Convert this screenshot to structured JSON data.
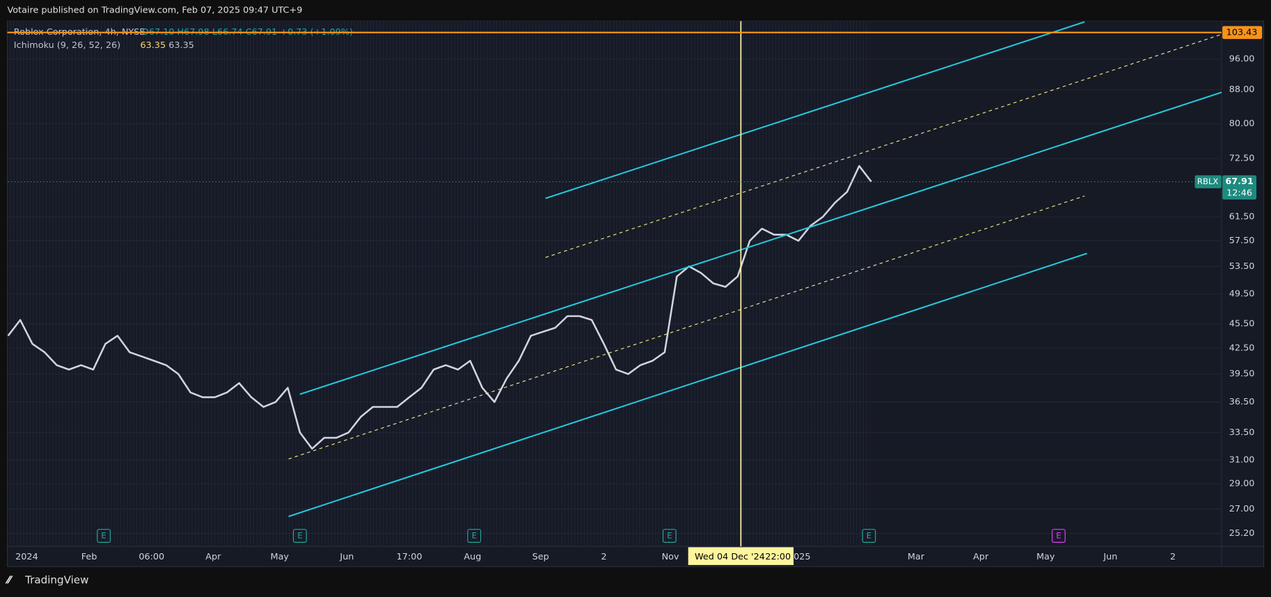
{
  "header": {
    "published": "Votaire published on TradingView.com, Feb 07, 2025 09:47 UTC+9",
    "footer": "TradingView"
  },
  "chart_data": {
    "type": "line",
    "legend": {
      "symbol": "Roblox Corporation, 4h, NYSE",
      "ohlc": "O67.10 H67.98 L66.74 C67.91 +0.73 (+1.09%)",
      "indicator": "Ichimoku (9, 26, 52, 26)",
      "indicator_values": [
        63.35,
        63.35
      ]
    },
    "series": [
      {
        "name": "RBLX",
        "color": "#d1d4dc",
        "values": [
          44,
          46,
          43,
          42,
          40.5,
          40,
          40.5,
          40,
          43,
          44,
          42,
          41.5,
          41,
          40.5,
          39.5,
          37.5,
          37,
          37,
          37.5,
          38.5,
          37,
          36,
          36.5,
          38,
          33.5,
          32,
          33,
          33,
          33.5,
          35,
          36,
          36,
          36,
          37,
          38,
          40,
          40.5,
          40,
          41,
          38,
          36.5,
          39,
          41,
          44,
          44.5,
          45,
          46.5,
          46.5,
          46,
          43,
          40,
          39.5,
          40.5,
          41,
          42,
          52,
          53.5,
          52.5,
          51,
          50.5,
          52,
          57.5,
          59.5,
          58.5,
          58.5,
          57.5,
          60,
          61.5,
          64,
          66,
          71,
          67.91
        ]
      }
    ],
    "last_price": 67.91,
    "countdown": "12:46",
    "alert_line": {
      "value": 103.43,
      "color": "#f7931a"
    },
    "ylim": [
      24.3,
      106.8
    ],
    "log_scale": true,
    "grid": true,
    "yticks": [
      {
        "value": 96,
        "label": "96.00"
      },
      {
        "value": 88,
        "label": "88.00"
      },
      {
        "value": 80,
        "label": "80.00"
      },
      {
        "value": 72.5,
        "label": "72.50"
      },
      {
        "value": 61.5,
        "label": "61.50"
      },
      {
        "value": 57.5,
        "label": "57.50"
      },
      {
        "value": 53.5,
        "label": "53.50"
      },
      {
        "value": 49.5,
        "label": "49.50"
      },
      {
        "value": 45.5,
        "label": "45.50"
      },
      {
        "value": 42.5,
        "label": "42.50"
      },
      {
        "value": 39.5,
        "label": "39.50"
      },
      {
        "value": 36.5,
        "label": "36.50"
      },
      {
        "value": 33.5,
        "label": "33.50"
      },
      {
        "value": 31,
        "label": "31.00"
      },
      {
        "value": 29,
        "label": "29.00"
      },
      {
        "value": 27,
        "label": "27.00"
      },
      {
        "value": 25.2,
        "label": "25.20"
      }
    ],
    "x_axis_labels": [
      "2024",
      "Feb",
      "06:00",
      "Apr",
      "May",
      "Jun",
      "17:00",
      "Aug",
      "Sep",
      "2",
      "Nov",
      "2025",
      "Mar",
      "Apr",
      "May",
      "Jun",
      "2"
    ],
    "earnings_marker": "E",
    "crosshair_label": [
      "Wed 04 Dec '24",
      "22:00"
    ]
  }
}
